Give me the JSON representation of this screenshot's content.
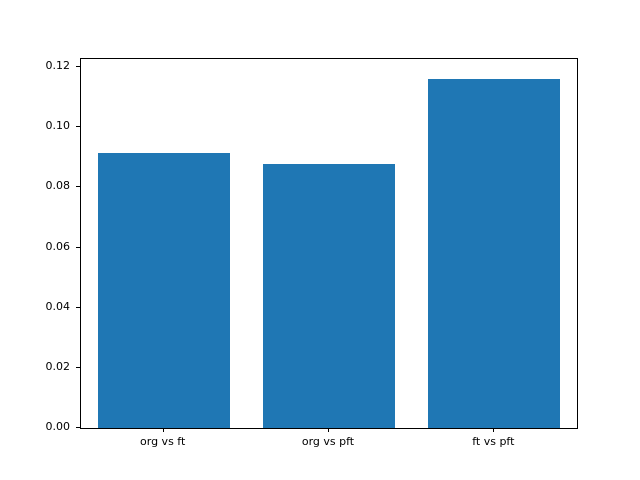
{
  "figure": {
    "background_color": "#ffffff",
    "axes_edge_color": "#000000"
  },
  "chart_data": {
    "type": "bar",
    "title": "",
    "xlabel": "",
    "ylabel": "",
    "categories": [
      "org vs ft",
      "org vs pft",
      "ft vs pft"
    ],
    "values": [
      0.0915,
      0.0878,
      0.116
    ],
    "ylim": [
      0,
      0.12
    ],
    "yticks": [
      0.0,
      0.02,
      0.04,
      0.06,
      0.08,
      0.1,
      0.12
    ],
    "ytick_labels": [
      "0.00",
      "0.02",
      "0.04",
      "0.06",
      "0.08",
      "0.10",
      "0.12"
    ],
    "bar_color": "#1f77b4",
    "grid": false,
    "legend_position": "none"
  }
}
